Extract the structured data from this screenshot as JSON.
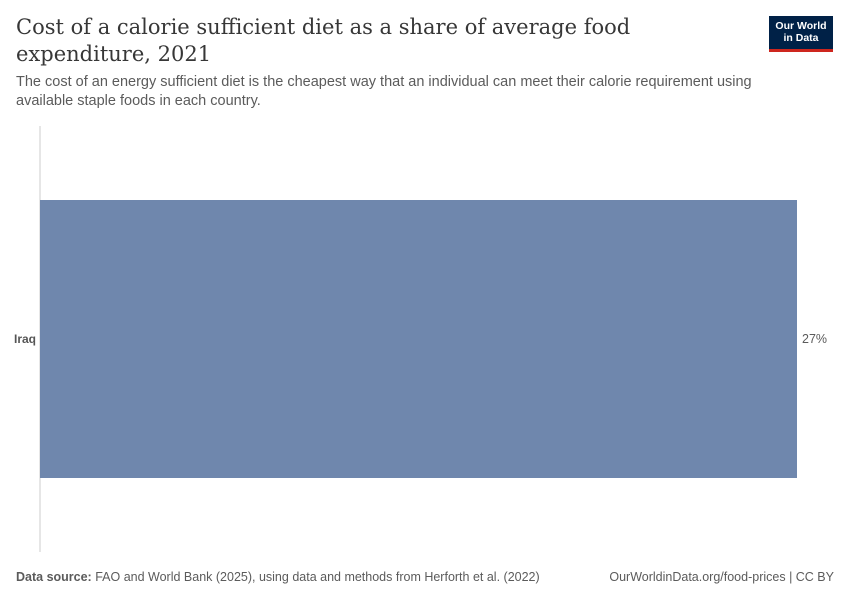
{
  "header": {
    "title": "Cost of a calorie sufficient diet as a share of average food expenditure, 2021",
    "subtitle": "The cost of an energy sufficient diet is the cheapest way that an individual can meet their calorie requirement using available staple foods in each country."
  },
  "logo": {
    "line1": "Our World",
    "line2": "in Data"
  },
  "chart_data": {
    "type": "bar",
    "orientation": "horizontal",
    "categories": [
      "Iraq"
    ],
    "values": [
      27
    ],
    "value_labels": [
      "27%"
    ],
    "xlim": [
      0,
      27
    ],
    "bar_color": "#6f87ad",
    "grid": false
  },
  "footer": {
    "source_label": "Data source:",
    "source_text": "FAO and World Bank (2025), using data and methods from Herforth et al. (2022)",
    "link": "OurWorldinData.org/food-prices | CC BY"
  }
}
